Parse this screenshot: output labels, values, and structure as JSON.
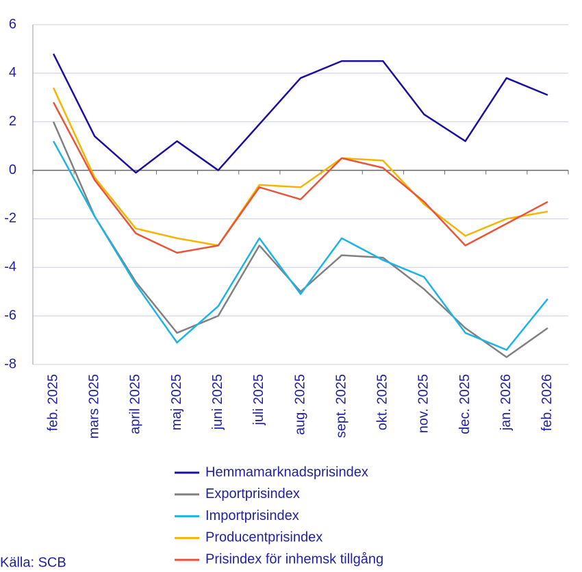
{
  "chart_data": {
    "type": "line",
    "categories": [
      "feb. 2025",
      "mars 2025",
      "april 2025",
      "maj 2025",
      "juni 2025",
      "juli 2025",
      "aug. 2025",
      "sept. 2025",
      "okt. 2025",
      "nov. 2025",
      "dec. 2025",
      "jan. 2026",
      "feb. 2026"
    ],
    "series": [
      {
        "name": "Hemmamarknadsprisindex",
        "color": "#1a0f9e",
        "values": [
          4.8,
          1.4,
          -0.1,
          1.2,
          0.0,
          1.9,
          3.8,
          4.5,
          4.5,
          2.3,
          1.2,
          3.8,
          3.1
        ]
      },
      {
        "name": "Exportprisindex",
        "color": "#808080",
        "values": [
          2.0,
          -1.9,
          -4.6,
          -6.7,
          -6.0,
          -3.1,
          -5.0,
          -3.5,
          -3.6,
          -4.9,
          -6.5,
          -7.7,
          -6.5
        ]
      },
      {
        "name": "Importprisindex",
        "color": "#1ab4e6",
        "values": [
          1.2,
          -1.9,
          -4.7,
          -7.1,
          -5.6,
          -2.8,
          -5.1,
          -2.8,
          -3.7,
          -4.4,
          -6.7,
          -7.4,
          -5.3
        ]
      },
      {
        "name": "Producentprisindex",
        "color": "#f5b400",
        "values": [
          3.4,
          -0.3,
          -2.4,
          -2.8,
          -3.1,
          -0.6,
          -0.7,
          0.5,
          0.4,
          -1.4,
          -2.7,
          -2.0,
          -1.7
        ]
      },
      {
        "name": "Prisindex för inhemsk tillgång",
        "color": "#e8553a",
        "values": [
          2.8,
          -0.4,
          -2.6,
          -3.4,
          -3.1,
          -0.7,
          -1.2,
          0.5,
          0.1,
          -1.3,
          -3.1,
          -2.2,
          -1.3
        ]
      }
    ],
    "ylim": [
      -8,
      6
    ],
    "yticks": [
      -8,
      -6,
      -4,
      -2,
      0,
      2,
      4,
      6
    ],
    "grid": true,
    "source": "Källa: SCB"
  }
}
